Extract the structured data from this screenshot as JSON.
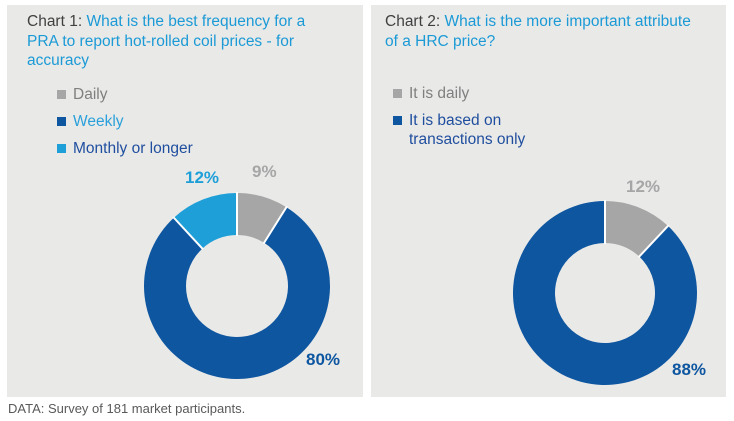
{
  "chart_data": [
    {
      "type": "pie",
      "subtype": "donut",
      "title_prefix": "Chart 1:",
      "title_question": "What is the best frequency for a PRA to report hot-rolled coil prices - for accuracy",
      "categories": [
        "Daily",
        "Weekly",
        "Monthly or longer"
      ],
      "values": [
        9,
        80,
        12
      ],
      "value_labels": [
        "9%",
        "80%",
        "12%"
      ],
      "slice_colors": [
        "#A6A6A6",
        "#0E56A0",
        "#1E9FD8"
      ],
      "legend_text_colors": [
        "#7F7F7F",
        "#2BA0DA",
        "#1F4E9E"
      ],
      "legend_position": "top-left",
      "start_angle": "top",
      "direction": "clockwise"
    },
    {
      "type": "pie",
      "subtype": "donut",
      "title_prefix": "Chart 2:",
      "title_question": "What is the more important attribute of a HRC price?",
      "categories": [
        "It is daily",
        "It is based on transactions only"
      ],
      "values": [
        12,
        88
      ],
      "value_labels": [
        "12%",
        "88%"
      ],
      "slice_colors": [
        "#A6A6A6",
        "#0E56A0"
      ],
      "legend_text_colors": [
        "#7F7F7F",
        "#1F4E9E"
      ],
      "legend_position": "top-left",
      "start_angle": "top",
      "direction": "clockwise"
    }
  ],
  "footer": {
    "text": "DATA: Survey of 181 market participants."
  },
  "colors": {
    "page_background": "#FFFFFF",
    "panel_background": "#E9E9E8",
    "title_prefix": "#404040",
    "title_question": "#1B9AD6",
    "dark_blue": "#0E56A0",
    "light_blue": "#1E9FD8",
    "gray": "#A6A6A6",
    "footer_text": "#595959",
    "slice_separator": "#FFFFFF"
  }
}
